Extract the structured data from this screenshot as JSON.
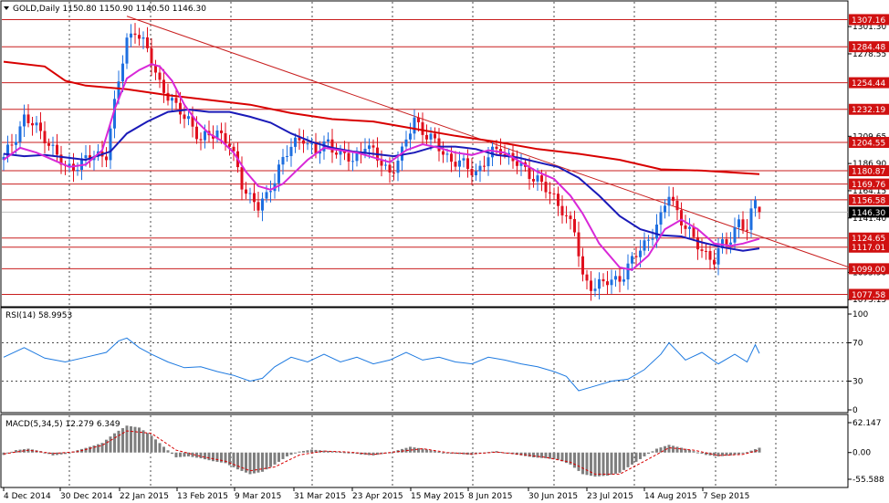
{
  "colors": {
    "background": "#ffffff",
    "frame": "#000000",
    "grid": "#000000",
    "bull": "#1e6fe0",
    "bear": "#e0101e",
    "ma_slow": "#d80000",
    "ma_mid": "#1a1ab8",
    "ma_fast": "#d828d8",
    "h_line": "#c81e1e",
    "trendline": "#c81e1e",
    "label_bg": "#d01010",
    "label_text": "#ffffff",
    "current_bg": "#000000",
    "rsi_line": "#1e7ae0",
    "macd_hist": "#7f7f7f",
    "macd_signal": "#d80000"
  },
  "header": {
    "symbol_line": "GOLD,Daily  1150.80 1150.90 1140.50 1146.30",
    "rsi_label": "RSI(14) 58.9953",
    "macd_label": "MACD(5,34,5) 12.279 6.349"
  },
  "main_axis": {
    "ticks": [
      "1301.30",
      "1278.55",
      "1209.65",
      "1186.90",
      "1164.15",
      "1141.40",
      "1095.90",
      "1073.15"
    ],
    "tick_values": [
      1301.3,
      1278.55,
      1209.65,
      1186.9,
      1164.15,
      1141.4,
      1095.9,
      1073.15
    ]
  },
  "levels": [
    {
      "label": "1307.16",
      "value": 1307.16
    },
    {
      "label": "1284.48",
      "value": 1284.48
    },
    {
      "label": "1254.44",
      "value": 1254.44
    },
    {
      "label": "1232.19",
      "value": 1232.19
    },
    {
      "label": "1204.55",
      "value": 1204.55
    },
    {
      "label": "1180.87",
      "value": 1180.87
    },
    {
      "label": "1169.76",
      "value": 1169.76
    },
    {
      "label": "1156.58",
      "value": 1156.58
    },
    {
      "label": "1124.65",
      "value": 1124.65
    },
    {
      "label": "1117.01",
      "value": 1117.01
    },
    {
      "label": "1099.00",
      "value": 1099.0
    },
    {
      "label": "1077.58",
      "value": 1077.58
    }
  ],
  "current_price": {
    "label": "1146.30",
    "value": 1146.3
  },
  "rsi_axis": {
    "ticks": [
      "100",
      "70",
      "30",
      "0"
    ],
    "tick_values": [
      100,
      70,
      30,
      0
    ]
  },
  "macd_axis": {
    "ticks": [
      "62.147",
      "0.00",
      "-55.588"
    ],
    "tick_values": [
      62.147,
      0,
      -55.588
    ]
  },
  "time_axis": {
    "labels": [
      "4 Dec 2014",
      "30 Dec 2014",
      "22 Jan 2015",
      "13 Feb 2015",
      "9 Mar 2015",
      "31 Mar 2015",
      "23 Apr 2015",
      "15 May 2015",
      "8 Jun 2015",
      "30 Jun 2015",
      "23 Jul 2015",
      "14 Aug 2015",
      "7 Sep 2015"
    ]
  },
  "chart_data": {
    "type": "candlestick",
    "symbol": "GOLD",
    "timeframe": "Daily",
    "last_bar": {
      "open": 1150.8,
      "high": 1150.9,
      "low": 1140.5,
      "close": 1146.3
    },
    "ylim": [
      1068,
      1322
    ],
    "close_path": [
      [
        0,
        1190
      ],
      [
        5,
        1225
      ],
      [
        10,
        1210
      ],
      [
        15,
        1182
      ],
      [
        20,
        1190
      ],
      [
        25,
        1196
      ],
      [
        28,
        1255
      ],
      [
        30,
        1290
      ],
      [
        32,
        1300
      ],
      [
        35,
        1280
      ],
      [
        38,
        1255
      ],
      [
        42,
        1232
      ],
      [
        45,
        1225
      ],
      [
        48,
        1205
      ],
      [
        52,
        1215
      ],
      [
        55,
        1202
      ],
      [
        58,
        1170
      ],
      [
        62,
        1150
      ],
      [
        64,
        1158
      ],
      [
        67,
        1185
      ],
      [
        70,
        1200
      ],
      [
        73,
        1210
      ],
      [
        76,
        1195
      ],
      [
        79,
        1205
      ],
      [
        82,
        1195
      ],
      [
        85,
        1188
      ],
      [
        88,
        1205
      ],
      [
        91,
        1190
      ],
      [
        94,
        1180
      ],
      [
        97,
        1195
      ],
      [
        100,
        1225
      ],
      [
        103,
        1210
      ],
      [
        106,
        1200
      ],
      [
        109,
        1190
      ],
      [
        112,
        1185
      ],
      [
        115,
        1180
      ],
      [
        118,
        1192
      ],
      [
        121,
        1200
      ],
      [
        124,
        1190
      ],
      [
        127,
        1180
      ],
      [
        130,
        1175
      ],
      [
        133,
        1160
      ],
      [
        136,
        1150
      ],
      [
        139,
        1130
      ],
      [
        141,
        1090
      ],
      [
        144,
        1085
      ],
      [
        148,
        1088
      ],
      [
        151,
        1095
      ],
      [
        154,
        1110
      ],
      [
        157,
        1125
      ],
      [
        160,
        1140
      ],
      [
        162,
        1162
      ],
      [
        165,
        1140
      ],
      [
        168,
        1122
      ],
      [
        171,
        1112
      ],
      [
        173,
        1106
      ],
      [
        175,
        1118
      ],
      [
        177,
        1125
      ],
      [
        179,
        1140
      ],
      [
        181,
        1130
      ],
      [
        183,
        1156
      ],
      [
        184,
        1146
      ]
    ],
    "ma_slow": [
      [
        0,
        1272
      ],
      [
        10,
        1268
      ],
      [
        15,
        1256
      ],
      [
        20,
        1252
      ],
      [
        30,
        1249
      ],
      [
        40,
        1244
      ],
      [
        50,
        1240
      ],
      [
        60,
        1236
      ],
      [
        70,
        1229
      ],
      [
        80,
        1224
      ],
      [
        90,
        1222
      ],
      [
        100,
        1216
      ],
      [
        110,
        1210
      ],
      [
        120,
        1205
      ],
      [
        130,
        1199
      ],
      [
        140,
        1195
      ],
      [
        150,
        1190
      ],
      [
        160,
        1182
      ],
      [
        170,
        1181
      ],
      [
        184,
        1178
      ]
    ],
    "ma_mid": [
      [
        0,
        1195
      ],
      [
        5,
        1193
      ],
      [
        10,
        1194
      ],
      [
        15,
        1192
      ],
      [
        20,
        1190
      ],
      [
        26,
        1197
      ],
      [
        30,
        1212
      ],
      [
        35,
        1222
      ],
      [
        40,
        1230
      ],
      [
        45,
        1232
      ],
      [
        50,
        1230
      ],
      [
        55,
        1230
      ],
      [
        60,
        1226
      ],
      [
        65,
        1221
      ],
      [
        70,
        1212
      ],
      [
        75,
        1205
      ],
      [
        80,
        1200
      ],
      [
        85,
        1197
      ],
      [
        90,
        1195
      ],
      [
        95,
        1193
      ],
      [
        100,
        1196
      ],
      [
        105,
        1201
      ],
      [
        110,
        1201
      ],
      [
        115,
        1199
      ],
      [
        120,
        1194
      ],
      [
        125,
        1192
      ],
      [
        130,
        1188
      ],
      [
        135,
        1184
      ],
      [
        140,
        1175
      ],
      [
        145,
        1160
      ],
      [
        150,
        1143
      ],
      [
        155,
        1132
      ],
      [
        160,
        1127
      ],
      [
        165,
        1126
      ],
      [
        170,
        1121
      ],
      [
        175,
        1117
      ],
      [
        180,
        1114
      ],
      [
        184,
        1116
      ]
    ],
    "ma_fast": [
      [
        0,
        1190
      ],
      [
        4,
        1200
      ],
      [
        8,
        1196
      ],
      [
        12,
        1190
      ],
      [
        16,
        1184
      ],
      [
        20,
        1186
      ],
      [
        24,
        1198
      ],
      [
        27,
        1232
      ],
      [
        30,
        1258
      ],
      [
        33,
        1265
      ],
      [
        36,
        1270
      ],
      [
        38,
        1268
      ],
      [
        41,
        1256
      ],
      [
        44,
        1236
      ],
      [
        47,
        1222
      ],
      [
        50,
        1212
      ],
      [
        53,
        1206
      ],
      [
        56,
        1196
      ],
      [
        59,
        1180
      ],
      [
        62,
        1168
      ],
      [
        65,
        1165
      ],
      [
        68,
        1170
      ],
      [
        71,
        1180
      ],
      [
        74,
        1190
      ],
      [
        78,
        1200
      ],
      [
        82,
        1198
      ],
      [
        86,
        1196
      ],
      [
        90,
        1192
      ],
      [
        94,
        1188
      ],
      [
        98,
        1198
      ],
      [
        102,
        1203
      ],
      [
        106,
        1200
      ],
      [
        110,
        1196
      ],
      [
        114,
        1194
      ],
      [
        118,
        1198
      ],
      [
        122,
        1196
      ],
      [
        126,
        1188
      ],
      [
        130,
        1180
      ],
      [
        134,
        1174
      ],
      [
        138,
        1160
      ],
      [
        141,
        1145
      ],
      [
        145,
        1120
      ],
      [
        150,
        1100
      ],
      [
        153,
        1098
      ],
      [
        157,
        1110
      ],
      [
        161,
        1132
      ],
      [
        165,
        1140
      ],
      [
        169,
        1132
      ],
      [
        173,
        1120
      ],
      [
        177,
        1118
      ],
      [
        180,
        1120
      ],
      [
        184,
        1124
      ]
    ],
    "trendline": {
      "from": [
        30,
        1310
      ],
      "to": [
        206,
        1100
      ]
    },
    "rsi": [
      [
        0,
        55
      ],
      [
        5,
        65
      ],
      [
        10,
        54
      ],
      [
        15,
        50
      ],
      [
        20,
        55
      ],
      [
        25,
        60
      ],
      [
        28,
        72
      ],
      [
        30,
        75
      ],
      [
        33,
        65
      ],
      [
        36,
        58
      ],
      [
        40,
        50
      ],
      [
        44,
        44
      ],
      [
        48,
        45
      ],
      [
        52,
        40
      ],
      [
        56,
        36
      ],
      [
        60,
        30
      ],
      [
        63,
        33
      ],
      [
        66,
        45
      ],
      [
        70,
        55
      ],
      [
        74,
        50
      ],
      [
        78,
        58
      ],
      [
        82,
        50
      ],
      [
        86,
        55
      ],
      [
        90,
        48
      ],
      [
        94,
        52
      ],
      [
        98,
        60
      ],
      [
        102,
        52
      ],
      [
        106,
        55
      ],
      [
        110,
        50
      ],
      [
        114,
        48
      ],
      [
        118,
        55
      ],
      [
        122,
        52
      ],
      [
        126,
        48
      ],
      [
        130,
        45
      ],
      [
        134,
        40
      ],
      [
        137,
        35
      ],
      [
        140,
        20
      ],
      [
        144,
        25
      ],
      [
        148,
        30
      ],
      [
        152,
        32
      ],
      [
        156,
        42
      ],
      [
        160,
        58
      ],
      [
        162,
        70
      ],
      [
        166,
        52
      ],
      [
        170,
        60
      ],
      [
        174,
        48
      ],
      [
        178,
        58
      ],
      [
        181,
        50
      ],
      [
        183,
        68
      ],
      [
        184,
        59
      ]
    ],
    "macd_hist": [
      [
        0,
        -5
      ],
      [
        3,
        5
      ],
      [
        6,
        8
      ],
      [
        9,
        3
      ],
      [
        12,
        -6
      ],
      [
        15,
        -3
      ],
      [
        18,
        5
      ],
      [
        21,
        12
      ],
      [
        24,
        20
      ],
      [
        27,
        40
      ],
      [
        30,
        56
      ],
      [
        33,
        52
      ],
      [
        36,
        35
      ],
      [
        39,
        12
      ],
      [
        42,
        -10
      ],
      [
        45,
        -8
      ],
      [
        48,
        -12
      ],
      [
        51,
        -18
      ],
      [
        54,
        -22
      ],
      [
        57,
        -35
      ],
      [
        60,
        -45
      ],
      [
        63,
        -40
      ],
      [
        66,
        -25
      ],
      [
        69,
        -8
      ],
      [
        72,
        2
      ],
      [
        75,
        6
      ],
      [
        78,
        4
      ],
      [
        81,
        2
      ],
      [
        84,
        0
      ],
      [
        87,
        -4
      ],
      [
        90,
        -6
      ],
      [
        93,
        -2
      ],
      [
        96,
        5
      ],
      [
        99,
        12
      ],
      [
        102,
        8
      ],
      [
        105,
        3
      ],
      [
        108,
        -2
      ],
      [
        111,
        -3
      ],
      [
        114,
        -5
      ],
      [
        117,
        0
      ],
      [
        120,
        3
      ],
      [
        123,
        -2
      ],
      [
        126,
        -6
      ],
      [
        129,
        -10
      ],
      [
        132,
        -12
      ],
      [
        135,
        -15
      ],
      [
        138,
        -25
      ],
      [
        141,
        -45
      ],
      [
        144,
        -50
      ],
      [
        147,
        -48
      ],
      [
        150,
        -42
      ],
      [
        153,
        -25
      ],
      [
        156,
        -8
      ],
      [
        159,
        8
      ],
      [
        162,
        16
      ],
      [
        165,
        10
      ],
      [
        168,
        3
      ],
      [
        171,
        -5
      ],
      [
        174,
        -8
      ],
      [
        177,
        -6
      ],
      [
        180,
        -2
      ],
      [
        182,
        4
      ],
      [
        184,
        10
      ]
    ],
    "macd_signal": [
      [
        0,
        -3
      ],
      [
        6,
        5
      ],
      [
        12,
        -2
      ],
      [
        18,
        2
      ],
      [
        24,
        15
      ],
      [
        30,
        45
      ],
      [
        36,
        40
      ],
      [
        42,
        5
      ],
      [
        48,
        -8
      ],
      [
        54,
        -18
      ],
      [
        60,
        -38
      ],
      [
        66,
        -30
      ],
      [
        72,
        -5
      ],
      [
        78,
        3
      ],
      [
        84,
        1
      ],
      [
        90,
        -4
      ],
      [
        96,
        2
      ],
      [
        102,
        8
      ],
      [
        108,
        0
      ],
      [
        114,
        -3
      ],
      [
        120,
        1
      ],
      [
        126,
        -4
      ],
      [
        132,
        -10
      ],
      [
        138,
        -20
      ],
      [
        144,
        -45
      ],
      [
        150,
        -45
      ],
      [
        156,
        -18
      ],
      [
        162,
        10
      ],
      [
        168,
        5
      ],
      [
        174,
        -6
      ],
      [
        180,
        -4
      ],
      [
        184,
        5
      ]
    ]
  }
}
